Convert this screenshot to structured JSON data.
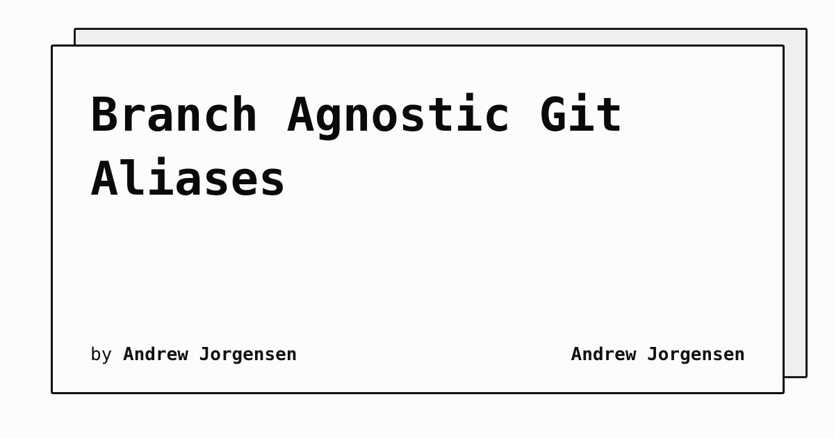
{
  "card": {
    "title": "Branch Agnostic Git Aliases",
    "byline": {
      "prefix": "by",
      "author": "Andrew Jorgensen"
    },
    "site_name": "Andrew Jorgensen"
  },
  "colors": {
    "background": "#fdfcfa",
    "back_card": "#efefef",
    "border": "#111111",
    "text": "#0a0a0a"
  }
}
